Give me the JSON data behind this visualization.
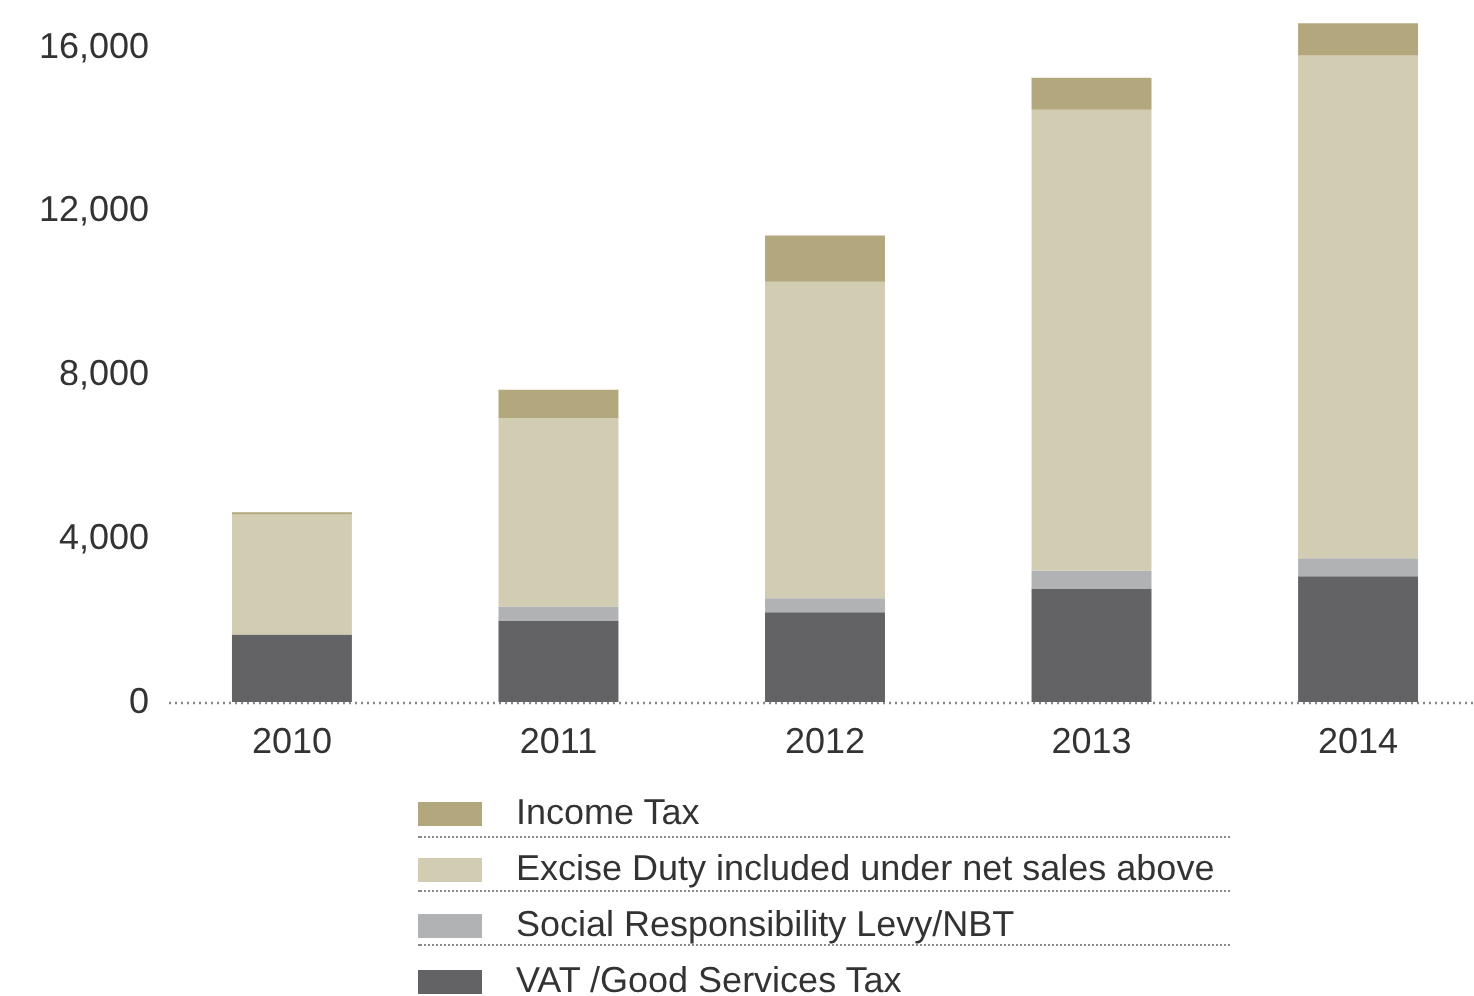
{
  "chart_data": {
    "type": "bar",
    "stacked": true,
    "categories": [
      "2010",
      "2011",
      "2012",
      "2013",
      "2014"
    ],
    "series": [
      {
        "name": "VAT /Good Services Tax",
        "color": "#636365",
        "values": [
          1650,
          1990,
          2190,
          2770,
          3070
        ]
      },
      {
        "name": "Social Responsibility Levy/NBT",
        "color": "#b0b2b4",
        "values": [
          null,
          340,
          340,
          440,
          440
        ]
      },
      {
        "name": "Excise Duty included under net sales above",
        "color": "#d2ccb3",
        "values": [
          2930,
          4600,
          7730,
          11250,
          12270
        ]
      },
      {
        "name": "Income Tax",
        "color": "#b3a77d",
        "values": [
          50,
          690,
          1130,
          780,
          790
        ]
      }
    ],
    "ylim": [
      0,
      16600
    ],
    "yticks": [
      0,
      {
        "value": 4000,
        "label": "4,000"
      },
      {
        "value": 8000,
        "label": "8,000"
      },
      {
        "value": 12000,
        "label": "12,000"
      },
      {
        "value": 16000,
        "label": "16,000"
      }
    ],
    "grid": false,
    "legend": "bottom"
  }
}
